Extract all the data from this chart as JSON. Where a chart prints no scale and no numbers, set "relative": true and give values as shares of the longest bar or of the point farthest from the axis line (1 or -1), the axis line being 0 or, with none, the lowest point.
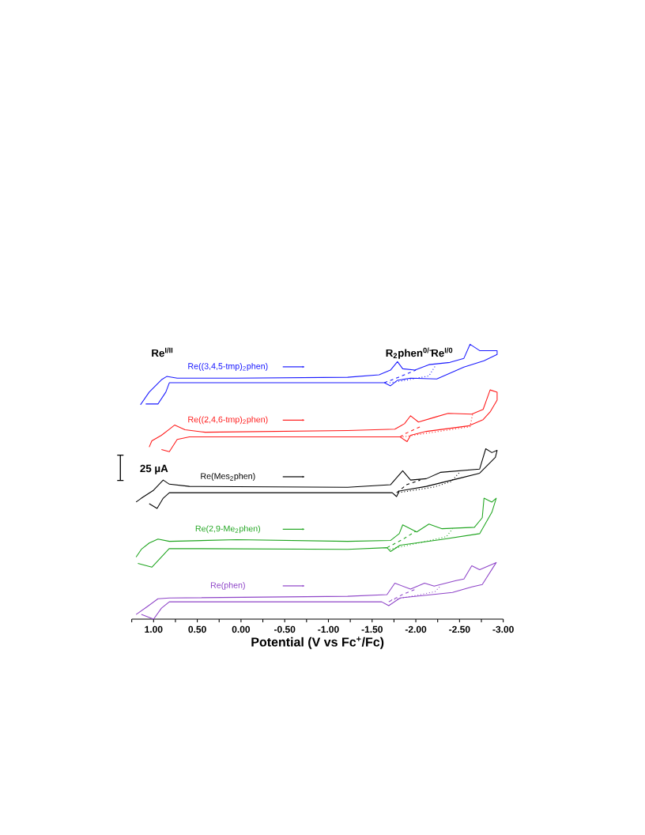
{
  "chart_data": {
    "type": "line",
    "relative": true,
    "legend": "left",
    "xlabel": "Potential (V vs Fc$^{+}$/Fc)",
    "xlim": [
      1.25,
      -3.0
    ],
    "xticks": [
      {
        "value": 1.25,
        "label": null
      },
      {
        "value": 1.0,
        "label": "1.00"
      },
      {
        "value": 0.75,
        "label": null
      },
      {
        "value": 0.5,
        "label": "0.50"
      },
      {
        "value": 0.25,
        "label": null
      },
      {
        "value": 0.0,
        "label": "0.00"
      },
      {
        "value": -0.25,
        "label": null
      },
      {
        "value": -0.5,
        "label": "-0.50"
      },
      {
        "value": -0.75,
        "label": null
      },
      {
        "value": -1.0,
        "label": "-1.00"
      },
      {
        "value": -1.25,
        "label": null
      },
      {
        "value": -1.5,
        "label": "-1.50"
      },
      {
        "value": -1.75,
        "label": null
      },
      {
        "value": -2.0,
        "label": "-2.00"
      },
      {
        "value": -2.25,
        "label": null
      },
      {
        "value": -2.5,
        "label": "-2.50"
      },
      {
        "value": -2.75,
        "label": null
      },
      {
        "value": -3.0,
        "label": "-3.00"
      }
    ],
    "annotations": [
      "Re$^{I/II}$",
      "R$_{2}$phen$^{0/−}$",
      "Re$^{I/0}$",
      "25 µA"
    ],
    "series": [
      {
        "name": "Re((3,4,5-tmp)$_{2}$phen)",
        "color": "#1a1aff",
        "line_style": "solid",
        "x": [
          1.15,
          1.05,
          0.91,
          0.85,
          0.73,
          0.05,
          -1.22,
          -1.58,
          -1.71,
          -1.79,
          -1.85,
          -1.99,
          -2.15,
          -2.39,
          -2.55,
          -2.62,
          -2.73,
          -2.93,
          -2.93,
          -2.78,
          -2.55,
          -2.24,
          -1.94,
          -1.79,
          -1.71,
          -1.64,
          -1.25,
          0.1,
          0.82,
          0.86,
          0.95,
          1.09
        ],
        "values": [
          0.78,
          0.826,
          0.871,
          0.883,
          0.877,
          0.877,
          0.88,
          0.889,
          0.906,
          0.937,
          0.911,
          0.906,
          0.926,
          0.934,
          0.949,
          1.0,
          0.977,
          0.977,
          0.963,
          0.94,
          0.917,
          0.874,
          0.877,
          0.869,
          0.849,
          0.86,
          0.86,
          0.86,
          0.86,
          0.826,
          0.783,
          0.783
        ]
      },
      {
        "color": "#1a1aff",
        "line_style": "dashed",
        "x": [
          -1.64,
          -1.8,
          -2.0
        ],
        "values": [
          0.86,
          0.88,
          0.906
        ]
      },
      {
        "color": "#1a1aff",
        "line_style": "dotted",
        "x": [
          -1.7,
          -1.9,
          -2.15,
          -2.22
        ],
        "values": [
          0.86,
          0.87,
          0.885,
          0.92
        ]
      },
      {
        "name": "Re((2,4,6-tmp)$_{2}$phen)",
        "color": "#ff1a1a",
        "line_style": "solid",
        "x": [
          1.05,
          1.02,
          0.91,
          0.82,
          0.76,
          0.64,
          0.41,
          -1.22,
          -1.76,
          -1.87,
          -1.94,
          -2.03,
          -2.21,
          -2.37,
          -2.64,
          -2.77,
          -2.85,
          -2.93,
          -2.93,
          -2.85,
          -2.77,
          -2.6,
          -2.12,
          -1.94,
          -1.9,
          -1.82,
          -1.25,
          0.59,
          0.73,
          0.82,
          0.91
        ],
        "values": [
          0.626,
          0.649,
          0.669,
          0.691,
          0.706,
          0.689,
          0.68,
          0.686,
          0.691,
          0.711,
          0.74,
          0.717,
          0.734,
          0.749,
          0.746,
          0.763,
          0.834,
          0.826,
          0.797,
          0.754,
          0.726,
          0.703,
          0.683,
          0.669,
          0.646,
          0.663,
          0.663,
          0.663,
          0.654,
          0.609,
          0.617
        ]
      },
      {
        "color": "#ff1a1a",
        "line_style": "dashed",
        "x": [
          -1.82,
          -1.88,
          -2.05
        ],
        "values": [
          0.663,
          0.675,
          0.7
        ]
      },
      {
        "color": "#ff1a1a",
        "line_style": "dotted",
        "x": [
          -1.85,
          -2.2,
          -2.62,
          -2.65
        ],
        "values": [
          0.663,
          0.68,
          0.7,
          0.746
        ]
      },
      {
        "name": "Re(Mes$_{2}$phen)",
        "color": "#000000",
        "line_style": "solid",
        "x": [
          1.2,
          1.14,
          1.0,
          0.89,
          0.82,
          0.59,
          -1.22,
          -1.71,
          -1.85,
          -1.94,
          -2.12,
          -2.28,
          -2.73,
          -2.8,
          -2.87,
          -2.93,
          -2.91,
          -2.73,
          -2.48,
          -2.12,
          -1.81,
          -1.78,
          -1.73,
          -1.25,
          0.82,
          0.89,
          0.96,
          1.05
        ],
        "values": [
          0.426,
          0.44,
          0.469,
          0.506,
          0.491,
          0.483,
          0.48,
          0.489,
          0.54,
          0.506,
          0.511,
          0.534,
          0.546,
          0.62,
          0.606,
          0.614,
          0.589,
          0.531,
          0.511,
          0.483,
          0.466,
          0.446,
          0.46,
          0.46,
          0.46,
          0.44,
          0.403,
          0.42
        ]
      },
      {
        "color": "#000000",
        "line_style": "dashed",
        "x": [
          -1.78,
          -1.9,
          -2.05
        ],
        "values": [
          0.46,
          0.49,
          0.506
        ]
      },
      {
        "color": "#000000",
        "line_style": "dotted",
        "x": [
          -1.8,
          -2.2,
          -2.4,
          -2.5
        ],
        "values": [
          0.46,
          0.48,
          0.5,
          0.534
        ]
      },
      {
        "name": "Re(2,9-Me$_{2}$phen)",
        "color": "#1fa51f",
        "line_style": "solid",
        "x": [
          1.2,
          1.14,
          1.05,
          0.95,
          0.82,
          0.05,
          -1.22,
          -1.71,
          -1.81,
          -1.85,
          -2.01,
          -2.15,
          -2.3,
          -2.67,
          -2.76,
          -2.78,
          -2.87,
          -2.92,
          -2.87,
          -2.73,
          -2.28,
          -1.82,
          -1.71,
          -1.67,
          -1.22,
          0.82,
          0.91,
          1.02,
          1.18
        ],
        "values": [
          0.226,
          0.254,
          0.277,
          0.291,
          0.283,
          0.289,
          0.283,
          0.286,
          0.311,
          0.343,
          0.317,
          0.346,
          0.329,
          0.334,
          0.369,
          0.44,
          0.426,
          0.44,
          0.389,
          0.311,
          0.289,
          0.269,
          0.246,
          0.26,
          0.254,
          0.257,
          0.226,
          0.189,
          0.203
        ]
      },
      {
        "color": "#1fa51f",
        "line_style": "dashed",
        "x": [
          -1.67,
          -1.85,
          -2.0
        ],
        "values": [
          0.26,
          0.29,
          0.32
        ]
      },
      {
        "color": "#1fa51f",
        "line_style": "dotted",
        "x": [
          -1.7,
          -2.0,
          -2.35,
          -2.42
        ],
        "values": [
          0.254,
          0.275,
          0.3,
          0.329
        ]
      },
      {
        "name": "Re(phen)",
        "color": "#8e44c8",
        "line_style": "solid",
        "x": [
          1.2,
          1.07,
          0.95,
          0.82,
          -1.22,
          -1.67,
          -1.76,
          -1.94,
          -2.1,
          -2.21,
          -2.46,
          -2.55,
          -2.64,
          -2.73,
          -2.92,
          -2.76,
          -2.64,
          -2.42,
          -1.82,
          -1.69,
          -1.61,
          -1.25,
          0.82,
          0.91,
          1.0,
          1.14
        ],
        "values": [
          0.017,
          0.046,
          0.074,
          0.077,
          0.083,
          0.089,
          0.131,
          0.109,
          0.131,
          0.12,
          0.14,
          0.146,
          0.194,
          0.18,
          0.206,
          0.126,
          0.117,
          0.097,
          0.077,
          0.049,
          0.063,
          0.063,
          0.063,
          0.04,
          0.0,
          0.017
        ]
      },
      {
        "color": "#8e44c8",
        "line_style": "dashed",
        "x": [
          -1.69,
          -1.85,
          -2.0
        ],
        "values": [
          0.063,
          0.09,
          0.109
        ]
      },
      {
        "color": "#8e44c8",
        "line_style": "dotted",
        "x": [
          -1.72,
          -2.0,
          -2.22,
          -2.28
        ],
        "values": [
          0.07,
          0.086,
          0.1,
          0.12
        ]
      }
    ]
  }
}
